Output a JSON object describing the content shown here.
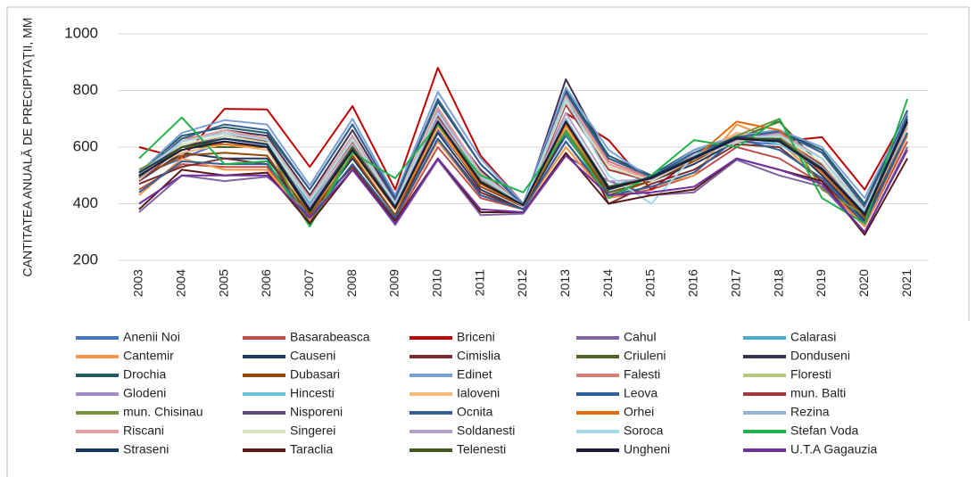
{
  "chart_data": {
    "type": "line",
    "y_label": "CANTITATEA ANUALĂ DE PRECIPITAŢII, MM",
    "categories": [
      "2003",
      "2004",
      "2005",
      "2006",
      "2007",
      "2008",
      "2009",
      "2010",
      "2011",
      "2012",
      "2013",
      "2014",
      "2015",
      "2016",
      "2017",
      "2018",
      "2019",
      "2020",
      "2021"
    ],
    "ylim": [
      200,
      1000
    ],
    "yticks": [
      200,
      400,
      600,
      800,
      1000
    ],
    "grid": true,
    "legend": "bottom",
    "series": [
      {
        "name": "Anenii Noi",
        "color": "#4472c4",
        "values": [
          500,
          560,
          620,
          600,
          380,
          580,
          380,
          660,
          470,
          390,
          640,
          440,
          480,
          560,
          620,
          610,
          520,
          350,
          650
        ]
      },
      {
        "name": "Basarabeasca",
        "color": "#c0504d",
        "values": [
          450,
          540,
          530,
          530,
          350,
          540,
          340,
          600,
          420,
          380,
          620,
          420,
          450,
          500,
          600,
          560,
          470,
          320,
          620
        ]
      },
      {
        "name": "Briceni",
        "color": "#c00000",
        "values": [
          600,
          560,
          735,
          733,
          530,
          745,
          450,
          880,
          570,
          400,
          720,
          625,
          450,
          560,
          650,
          620,
          635,
          450,
          720
        ]
      },
      {
        "name": "Cahul",
        "color": "#8064a2",
        "values": [
          370,
          500,
          480,
          495,
          380,
          530,
          325,
          555,
          360,
          365,
          570,
          480,
          430,
          440,
          555,
          500,
          460,
          300,
          600
        ]
      },
      {
        "name": "Calarasi",
        "color": "#4bacc6",
        "values": [
          520,
          600,
          640,
          620,
          400,
          600,
          400,
          700,
          500,
          400,
          700,
          460,
          500,
          580,
          640,
          620,
          540,
          380,
          700
        ]
      },
      {
        "name": "Cantemir",
        "color": "#f79646",
        "values": [
          430,
          560,
          520,
          520,
          340,
          520,
          350,
          620,
          430,
          380,
          600,
          420,
          460,
          500,
          680,
          620,
          480,
          320,
          640
        ]
      },
      {
        "name": "Causeni",
        "color": "#1f3864",
        "values": [
          480,
          580,
          560,
          560,
          360,
          560,
          360,
          650,
          450,
          380,
          650,
          440,
          480,
          540,
          620,
          640,
          500,
          340,
          680
        ]
      },
      {
        "name": "Cimislia",
        "color": "#7b2c2c",
        "values": [
          470,
          530,
          560,
          540,
          370,
          530,
          350,
          630,
          440,
          380,
          700,
          400,
          470,
          520,
          610,
          600,
          480,
          330,
          650
        ]
      },
      {
        "name": "Criuleni",
        "color": "#4f6228",
        "values": [
          510,
          600,
          600,
          600,
          330,
          590,
          390,
          690,
          480,
          400,
          660,
          440,
          480,
          560,
          630,
          690,
          530,
          360,
          690
        ]
      },
      {
        "name": "Donduseni",
        "color": "#3f3151",
        "values": [
          490,
          620,
          660,
          640,
          430,
          660,
          410,
          720,
          520,
          390,
          840,
          560,
          500,
          580,
          640,
          660,
          580,
          390,
          720
        ]
      },
      {
        "name": "Drochia",
        "color": "#215967",
        "values": [
          510,
          640,
          670,
          650,
          450,
          680,
          420,
          760,
          540,
          400,
          800,
          570,
          500,
          590,
          640,
          660,
          590,
          400,
          730
        ]
      },
      {
        "name": "Dubasari",
        "color": "#974806",
        "values": [
          490,
          570,
          580,
          570,
          360,
          570,
          360,
          670,
          460,
          390,
          660,
          430,
          480,
          550,
          630,
          640,
          510,
          350,
          670
        ]
      },
      {
        "name": "Edinet",
        "color": "#7aa0d8",
        "values": [
          510,
          650,
          695,
          680,
          465,
          700,
          430,
          795,
          560,
          400,
          810,
          590,
          490,
          590,
          640,
          660,
          600,
          420,
          720
        ]
      },
      {
        "name": "Falesti",
        "color": "#da7a76",
        "values": [
          500,
          630,
          650,
          630,
          420,
          640,
          400,
          740,
          510,
          395,
          780,
          550,
          490,
          570,
          630,
          650,
          560,
          380,
          700
        ]
      },
      {
        "name": "Floresti",
        "color": "#b3c87a",
        "values": [
          480,
          610,
          640,
          610,
          410,
          620,
          400,
          720,
          500,
          390,
          760,
          530,
          480,
          560,
          620,
          640,
          540,
          370,
          690
        ]
      },
      {
        "name": "Glodeni",
        "color": "#a38cc6",
        "values": [
          490,
          620,
          650,
          620,
          420,
          640,
          405,
          730,
          505,
          392,
          770,
          540,
          485,
          570,
          625,
          650,
          560,
          375,
          700
        ]
      },
      {
        "name": "Hincesti",
        "color": "#6bc5d9",
        "values": [
          520,
          590,
          620,
          600,
          380,
          590,
          390,
          680,
          480,
          400,
          680,
          450,
          500,
          570,
          640,
          610,
          520,
          370,
          680
        ]
      },
      {
        "name": "Ialoveni",
        "color": "#f9b97a",
        "values": [
          510,
          580,
          610,
          590,
          370,
          580,
          380,
          670,
          470,
          395,
          670,
          450,
          490,
          560,
          650,
          620,
          520,
          360,
          670
        ]
      },
      {
        "name": "Leova",
        "color": "#2e6099",
        "values": [
          440,
          550,
          540,
          540,
          350,
          540,
          350,
          630,
          430,
          380,
          620,
          430,
          460,
          510,
          630,
          590,
          490,
          330,
          650
        ]
      },
      {
        "name": "mun.  Balti",
        "color": "#a03a3a",
        "values": [
          480,
          600,
          640,
          620,
          410,
          620,
          400,
          710,
          500,
          390,
          750,
          520,
          480,
          560,
          620,
          630,
          540,
          370,
          690
        ]
      },
      {
        "name": "mun. Chisinau",
        "color": "#76923c",
        "values": [
          520,
          600,
          630,
          610,
          320,
          600,
          390,
          680,
          480,
          400,
          660,
          450,
          490,
          570,
          640,
          700,
          450,
          360,
          700
        ]
      },
      {
        "name": "Nisporeni",
        "color": "#5f497a",
        "values": [
          500,
          590,
          620,
          600,
          380,
          590,
          385,
          690,
          480,
          395,
          690,
          450,
          490,
          560,
          630,
          620,
          520,
          360,
          690
        ]
      },
      {
        "name": "Ocnita",
        "color": "#366092",
        "values": [
          500,
          630,
          680,
          660,
          450,
          680,
          420,
          770,
          540,
          395,
          790,
          560,
          495,
          580,
          635,
          655,
          580,
          390,
          710
        ]
      },
      {
        "name": "Orhei",
        "color": "#e36c09",
        "values": [
          500,
          600,
          610,
          600,
          370,
          590,
          380,
          680,
          470,
          395,
          680,
          450,
          490,
          560,
          690,
          660,
          510,
          360,
          680
        ]
      },
      {
        "name": "Rezina",
        "color": "#95b3d7",
        "values": [
          490,
          600,
          620,
          600,
          380,
          600,
          390,
          690,
          480,
          395,
          700,
          460,
          490,
          560,
          630,
          620,
          520,
          360,
          680
        ]
      },
      {
        "name": "Riscani",
        "color": "#e6a0a0",
        "values": [
          495,
          620,
          660,
          630,
          420,
          640,
          400,
          740,
          510,
          390,
          780,
          540,
          485,
          570,
          625,
          645,
          560,
          380,
          700
        ]
      },
      {
        "name": "Singerei",
        "color": "#d6e3bc",
        "values": [
          485,
          610,
          640,
          615,
          410,
          625,
          400,
          720,
          500,
          390,
          760,
          530,
          480,
          560,
          620,
          640,
          545,
          370,
          690
        ]
      },
      {
        "name": "Soldanesti",
        "color": "#b2a1c7",
        "values": [
          490,
          600,
          630,
          605,
          390,
          610,
          390,
          700,
          490,
          390,
          720,
          480,
          485,
          560,
          625,
          630,
          530,
          365,
          690
        ]
      },
      {
        "name": "Soroca",
        "color": "#a5d8e6",
        "values": [
          505,
          620,
          650,
          625,
          410,
          630,
          400,
          720,
          500,
          395,
          770,
          500,
          400,
          570,
          630,
          640,
          560,
          375,
          700
        ]
      },
      {
        "name": "Stefan Voda",
        "color": "#22b14c",
        "values": [
          560,
          705,
          540,
          550,
          320,
          580,
          490,
          680,
          500,
          440,
          650,
          420,
          500,
          625,
          600,
          700,
          420,
          330,
          770
        ]
      },
      {
        "name": "Straseni",
        "color": "#17375e",
        "values": [
          510,
          600,
          630,
          610,
          380,
          600,
          390,
          690,
          480,
          395,
          690,
          450,
          495,
          565,
          635,
          625,
          525,
          365,
          700
        ]
      },
      {
        "name": "Taraclia",
        "color": "#5a1a1a",
        "values": [
          380,
          520,
          500,
          510,
          330,
          520,
          340,
          560,
          370,
          370,
          580,
          400,
          430,
          450,
          560,
          520,
          480,
          290,
          560
        ]
      },
      {
        "name": "Telenesti",
        "color": "#3e5a1e",
        "values": [
          495,
          600,
          620,
          600,
          370,
          600,
          385,
          690,
          480,
          395,
          690,
          460,
          490,
          560,
          630,
          630,
          520,
          360,
          690
        ]
      },
      {
        "name": "Ungheni",
        "color": "#1d1b3a",
        "values": [
          500,
          590,
          620,
          600,
          375,
          590,
          385,
          690,
          475,
          395,
          690,
          455,
          490,
          560,
          630,
          620,
          520,
          360,
          690
        ]
      },
      {
        "name": "U.T.A Gagauzia",
        "color": "#7030a0",
        "values": [
          400,
          500,
          500,
          500,
          350,
          520,
          330,
          560,
          380,
          370,
          570,
          430,
          440,
          460,
          560,
          520,
          470,
          300,
          590
        ]
      }
    ]
  }
}
